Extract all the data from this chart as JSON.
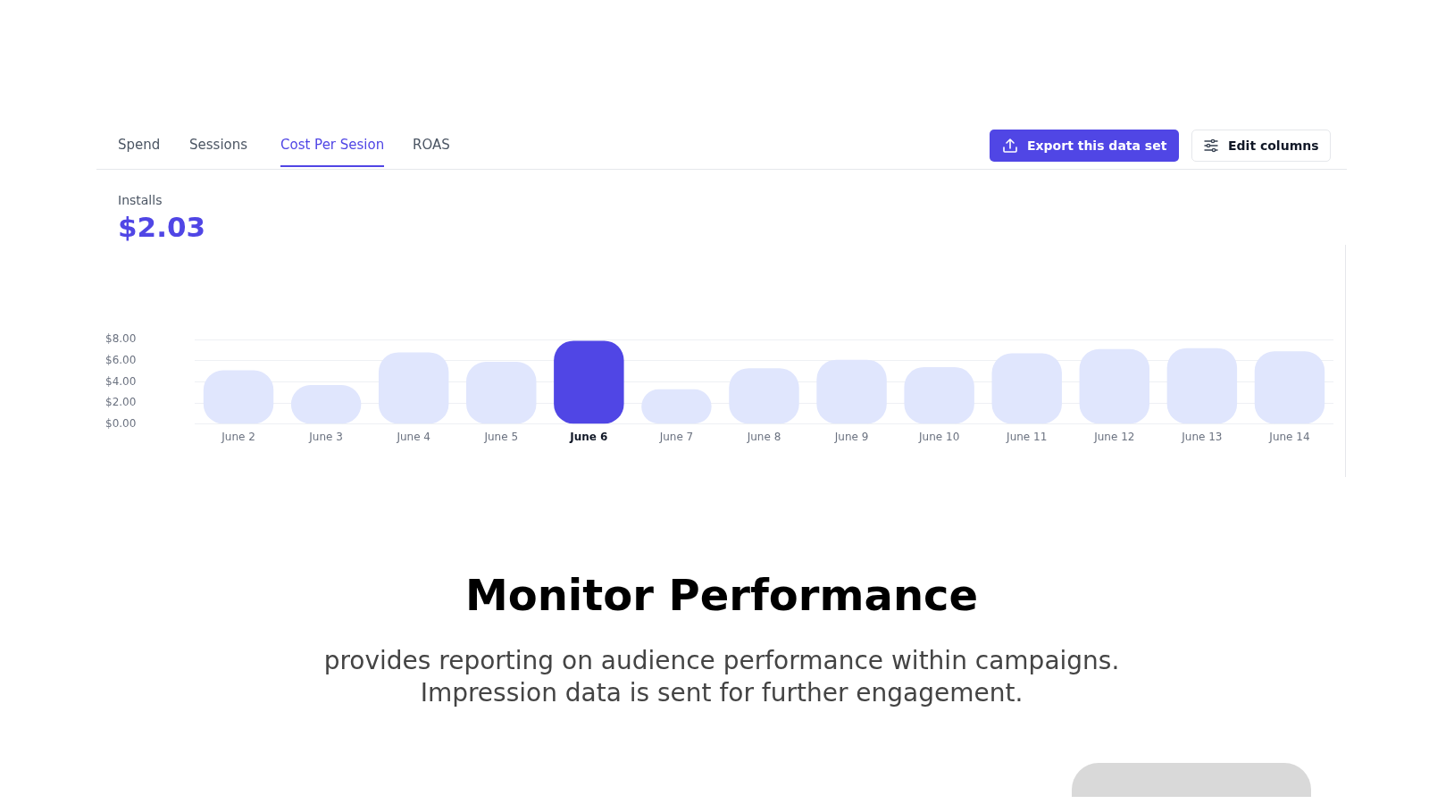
{
  "chart_data": {
    "type": "bar",
    "title": "Installs",
    "subtitle": "$2.03",
    "categories": [
      "June 2",
      "June 3",
      "June 4",
      "June 5",
      "June 6",
      "June 7",
      "June 8",
      "June 9",
      "June 10",
      "June 11",
      "June 12",
      "June 13",
      "June 14"
    ],
    "values": [
      5.1,
      3.7,
      6.8,
      5.9,
      7.9,
      3.3,
      5.3,
      6.1,
      5.4,
      6.7,
      7.1,
      7.2,
      6.9
    ],
    "colors": [
      "#e0e6fd",
      "#e0e6fd",
      "#e0e6fd",
      "#e0e6fd",
      "#5046e5",
      "#e0e6fd",
      "#e0e6fd",
      "#e0e6fd",
      "#e0e6fd",
      "#e0e6fd",
      "#e0e6fd",
      "#e0e6fd",
      "#e0e6fd"
    ],
    "ylim": [
      0,
      8
    ],
    "yticks": [
      {
        "value": 0,
        "label": "$0.00"
      },
      {
        "value": 2,
        "label": "$2.00"
      },
      {
        "value": 4,
        "label": "$4.00"
      },
      {
        "value": 6,
        "label": "$6.00"
      },
      {
        "value": 8,
        "label": "$8.00"
      }
    ],
    "grid": "y",
    "legend": false,
    "annotations": [
      "Spend",
      "Sessions",
      "Cost Per Sesion",
      "ROAS",
      "Export this data set",
      "Edit columns",
      "Monitor Performance",
      "provides reporting on audience performance within campaigns.",
      "Impression data is sent for further engagement."
    ]
  }
}
